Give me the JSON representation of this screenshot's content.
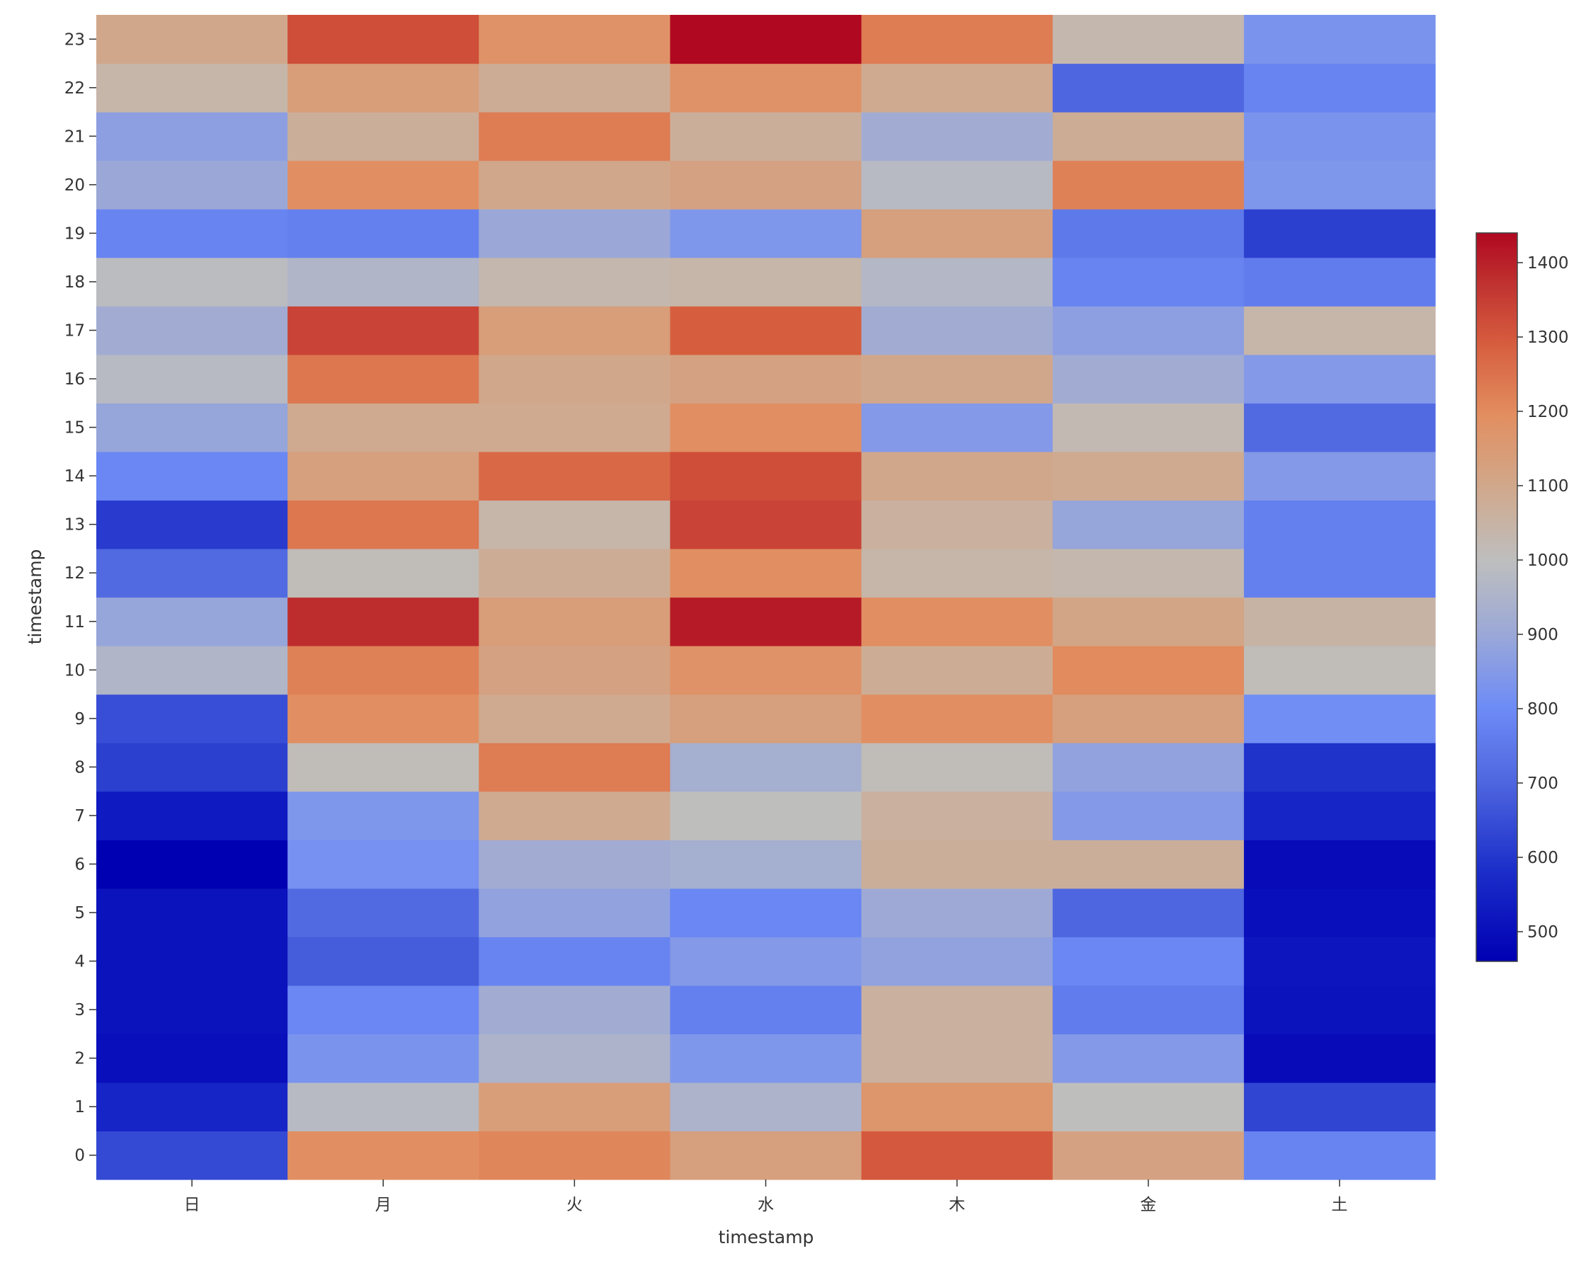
{
  "chart_data": {
    "type": "heatmap",
    "xlabel": "timestamp",
    "ylabel": "timestamp",
    "x_categories": [
      "日",
      "月",
      "火",
      "水",
      "木",
      "金",
      "土"
    ],
    "y_categories": [
      "0",
      "1",
      "2",
      "3",
      "4",
      "5",
      "6",
      "7",
      "8",
      "9",
      "10",
      "11",
      "12",
      "13",
      "14",
      "15",
      "16",
      "17",
      "18",
      "19",
      "20",
      "21",
      "22",
      "23"
    ],
    "values": [
      [
        640,
        1190,
        1210,
        1130,
        1300,
        1120,
        780
      ],
      [
        560,
        980,
        1140,
        950,
        1170,
        1000,
        630
      ],
      [
        500,
        830,
        950,
        840,
        1060,
        850,
        490
      ],
      [
        510,
        790,
        920,
        770,
        1060,
        760,
        510
      ],
      [
        510,
        680,
        780,
        850,
        880,
        790,
        520
      ],
      [
        510,
        710,
        880,
        790,
        910,
        700,
        500
      ],
      [
        460,
        820,
        920,
        930,
        1070,
        1070,
        490
      ],
      [
        530,
        840,
        1090,
        1000,
        1060,
        850,
        560
      ],
      [
        620,
        1010,
        1230,
        930,
        1010,
        880,
        590
      ],
      [
        650,
        1190,
        1090,
        1130,
        1190,
        1130,
        810
      ],
      [
        960,
        1220,
        1120,
        1180,
        1080,
        1200,
        1010
      ],
      [
        890,
        1380,
        1140,
        1410,
        1190,
        1110,
        1050
      ],
      [
        710,
        1010,
        1080,
        1190,
        1040,
        1030,
        770
      ],
      [
        610,
        1240,
        1040,
        1340,
        1060,
        890,
        770
      ],
      [
        790,
        1130,
        1270,
        1320,
        1100,
        1090,
        850
      ],
      [
        890,
        1090,
        1090,
        1190,
        850,
        1020,
        710
      ],
      [
        980,
        1240,
        1100,
        1120,
        1100,
        920,
        850
      ],
      [
        920,
        1340,
        1140,
        1290,
        920,
        870,
        1040
      ],
      [
        990,
        960,
        1030,
        1040,
        970,
        780,
        760
      ],
      [
        780,
        770,
        900,
        840,
        1130,
        750,
        620
      ],
      [
        900,
        1190,
        1100,
        1120,
        980,
        1220,
        840
      ],
      [
        870,
        1070,
        1230,
        1070,
        920,
        1080,
        830
      ],
      [
        1040,
        1140,
        1080,
        1180,
        1090,
        700,
        780
      ],
      [
        1100,
        1320,
        1180,
        1440,
        1230,
        1030,
        830
      ]
    ],
    "colorbar": {
      "colormap": "coolwarm",
      "vmin": 460,
      "vmax": 1440,
      "ticks": [
        500,
        600,
        700,
        800,
        900,
        1000,
        1100,
        1200,
        1300,
        1400
      ]
    }
  }
}
